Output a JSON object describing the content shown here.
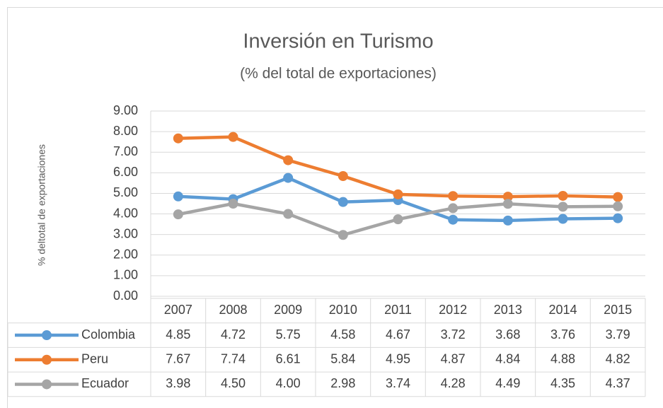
{
  "chart_data": {
    "type": "line",
    "title": "Inversión en Turismo",
    "subtitle": "(% del total de exportaciones)",
    "y_label": "% deltotal de exportaciones",
    "categories": [
      "2007",
      "2008",
      "2009",
      "2010",
      "2011",
      "2012",
      "2013",
      "2014",
      "2015"
    ],
    "series": [
      {
        "name": "Colombia",
        "color": "#5b9bd5",
        "values": [
          4.85,
          4.72,
          5.75,
          4.58,
          4.67,
          3.72,
          3.68,
          3.76,
          3.79
        ],
        "value_labels": [
          "4.85",
          "4.72",
          "5.75",
          "4.58",
          "4.67",
          "3.72",
          "3.68",
          "3.76",
          "3.79"
        ]
      },
      {
        "name": "Peru",
        "color": "#ed7d31",
        "values": [
          7.67,
          7.74,
          6.61,
          5.84,
          4.95,
          4.87,
          4.84,
          4.88,
          4.82
        ],
        "value_labels": [
          "7.67",
          "7.74",
          "6.61",
          "5.84",
          "4.95",
          "4.87",
          "4.84",
          "4.88",
          "4.82"
        ]
      },
      {
        "name": "Ecuador",
        "color": "#a5a5a5",
        "values": [
          3.98,
          4.5,
          4.0,
          2.98,
          3.74,
          4.28,
          4.49,
          4.35,
          4.37
        ],
        "value_labels": [
          "3.98",
          "4.50",
          "4.00",
          "2.98",
          "3.74",
          "4.28",
          "4.49",
          "4.35",
          "4.37"
        ]
      }
    ],
    "ylim": [
      0,
      9
    ],
    "yticks": [
      {
        "value": 0,
        "label": "0.00"
      },
      {
        "value": 1,
        "label": "1.00"
      },
      {
        "value": 2,
        "label": "2.00"
      },
      {
        "value": 3,
        "label": "3.00"
      },
      {
        "value": 4,
        "label": "4.00"
      },
      {
        "value": 5,
        "label": "5.00"
      },
      {
        "value": 6,
        "label": "6.00"
      },
      {
        "value": 7,
        "label": "7.00"
      },
      {
        "value": 8,
        "label": "8.00"
      },
      {
        "value": 9,
        "label": "9.00"
      }
    ],
    "grid": true
  }
}
